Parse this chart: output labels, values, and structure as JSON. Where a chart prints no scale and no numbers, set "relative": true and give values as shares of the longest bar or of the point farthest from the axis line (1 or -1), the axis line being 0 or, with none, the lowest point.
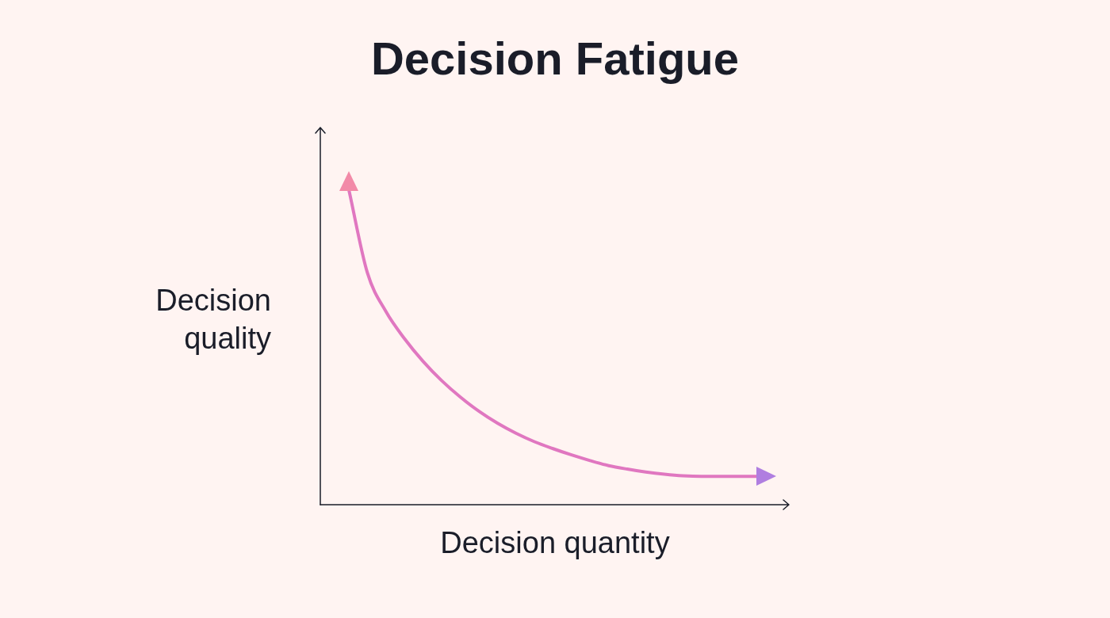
{
  "chart_data": {
    "type": "line",
    "title": "Decision Fatigue",
    "xlabel": "Decision quantity",
    "ylabel": "Decision quality",
    "relative": true,
    "grid": false,
    "legend": false,
    "marker": "none",
    "line_style": "solid",
    "categories": [
      null,
      null,
      null,
      null,
      null,
      null,
      null,
      null,
      null,
      null,
      null,
      null,
      null,
      null,
      null,
      null,
      null,
      null,
      null,
      null,
      null,
      null,
      null
    ],
    "series": [
      {
        "color": "#e077c0",
        "values": [
          1,
          0.736,
          0.613,
          0.527,
          0.455,
          0.394,
          0.342,
          0.297,
          0.259,
          0.227,
          0.2,
          0.178,
          0.158,
          0.14,
          0.124,
          0.113,
          0.104,
          0.097,
          0.092,
          0.09,
          0.09,
          0.09,
          0.09
        ]
      }
    ]
  }
}
